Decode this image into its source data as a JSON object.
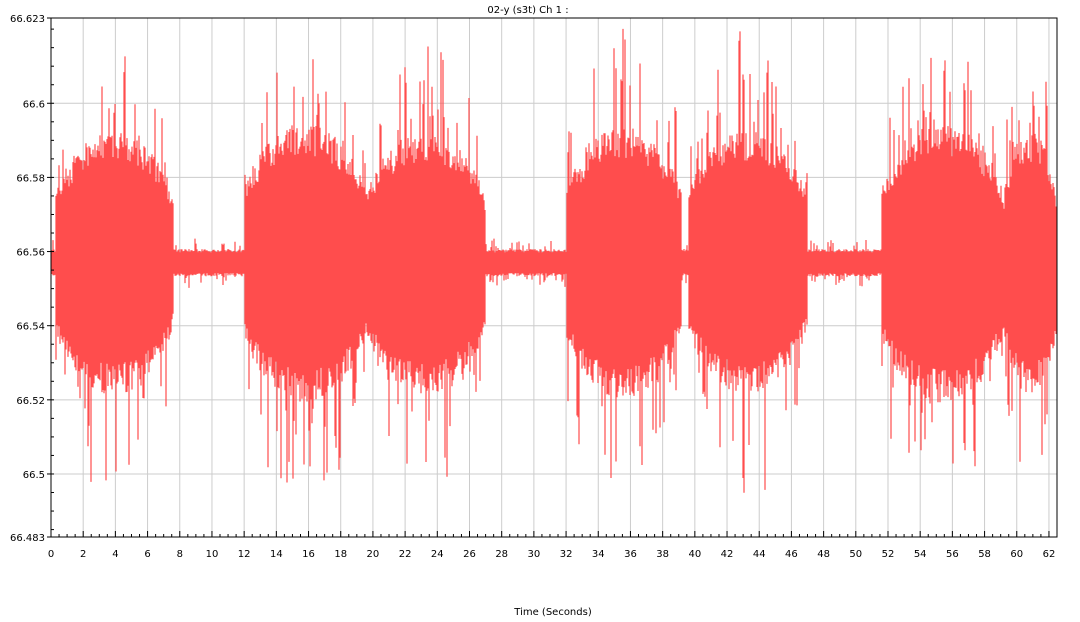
{
  "chart_data": {
    "type": "line",
    "title": "02-y (s3t)  Ch 1 :",
    "xlabel": "Time (Seconds)",
    "ylabel": "",
    "xlim": [
      0,
      62.5
    ],
    "ylim": [
      66.483,
      66.623
    ],
    "grid": true,
    "y_tick_labels": [
      "66.483",
      "66.5",
      "66.52",
      "66.54",
      "66.56",
      "66.58",
      "66.6",
      "66.623"
    ],
    "x_tick_labels": [
      "0",
      "2",
      "4",
      "6",
      "8",
      "10",
      "12",
      "14",
      "16",
      "18",
      "20",
      "22",
      "24",
      "26",
      "28",
      "30",
      "32",
      "34",
      "36",
      "38",
      "40",
      "42",
      "44",
      "46",
      "48",
      "50",
      "52",
      "54",
      "56",
      "58",
      "60",
      "62"
    ],
    "series": [
      {
        "color": "#ff4d4d",
        "center": 66.557,
        "note_envelope": [
          {
            "t0": 0.3,
            "t1": 7.6,
            "peak_amp": 0.034
          },
          {
            "t0": 12.0,
            "t1": 19.6,
            "peak_amp": 0.036
          },
          {
            "t0": 19.6,
            "t1": 27.0,
            "peak_amp": 0.034
          },
          {
            "t0": 32.0,
            "t1": 39.2,
            "peak_amp": 0.035
          },
          {
            "t0": 39.6,
            "t1": 47.0,
            "peak_amp": 0.034
          },
          {
            "t0": 51.6,
            "t1": 59.2,
            "peak_amp": 0.036
          },
          {
            "t0": 59.2,
            "t1": 62.5,
            "peak_amp": 0.034
          }
        ],
        "idle_amplitude": 0.0035,
        "min_observed": 66.49,
        "max_observed": 66.623
      }
    ]
  }
}
